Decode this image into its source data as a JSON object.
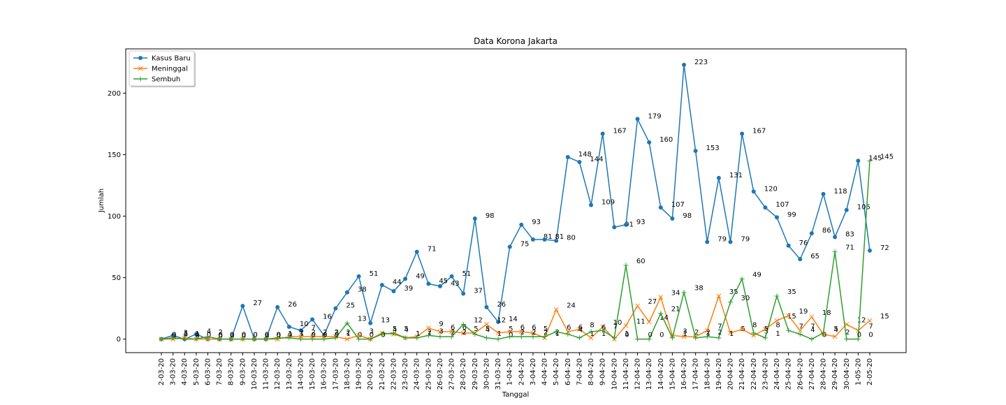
{
  "chart_data": {
    "type": "line",
    "title": "Data Korona Jakarta",
    "xlabel": "Tanggal",
    "ylabel": "Jumlah",
    "ylim": [
      -11,
      236
    ],
    "yticks": [
      0,
      50,
      100,
      150,
      200
    ],
    "grid": false,
    "legend_position": "top-left",
    "categories": [
      "2-03-20",
      "3-03-20",
      "4-03-20",
      "5-03-20",
      "6-03-20",
      "7-03-20",
      "8-03-20",
      "9-03-20",
      "10-03-20",
      "11-03-20",
      "12-03-20",
      "13-03-20",
      "14-03-20",
      "15-03-20",
      "16-03-20",
      "17-03-20",
      "18-03-20",
      "19-03-20",
      "20-03-20",
      "21-03-20",
      "22-03-20",
      "23-03-20",
      "24-03-20",
      "25-03-20",
      "26-03-20",
      "27-03-20",
      "28-03-20",
      "29-03-20",
      "30-03-20",
      "31-03-20",
      "1-04-20",
      "2-04-20",
      "3-04-20",
      "4-04-20",
      "5-04-20",
      "6-04-20",
      "7-04-20",
      "8-04-20",
      "9-04-20",
      "10-04-20",
      "11-04-20",
      "12-04-20",
      "13-04-20",
      "14-04-20",
      "15-04-20",
      "16-04-20",
      "17-04-20",
      "18-04-20",
      "19-04-20",
      "20-04-20",
      "21-04-20",
      "22-04-20",
      "23-04-20",
      "24-04-20",
      "25-04-20",
      "26-04-20",
      "27-04-20",
      "28-04-20",
      "29-04-20",
      "30-04-20",
      "1-05-20",
      "2-05-20"
    ],
    "series": [
      {
        "name": "Kasus Baru",
        "color": "#1f77b4",
        "marker": "circle",
        "values": [
          0,
          3,
          0,
          4,
          0,
          0,
          0,
          27,
          0,
          0,
          26,
          10,
          7,
          16,
          3,
          25,
          38,
          51,
          13,
          44,
          39,
          49,
          71,
          45,
          43,
          51,
          37,
          98,
          26,
          14,
          75,
          93,
          81,
          81,
          80,
          148,
          144,
          109,
          167,
          91,
          93,
          179,
          160,
          107,
          98,
          223,
          153,
          79,
          131,
          79,
          167,
          120,
          107,
          99,
          76,
          65,
          86,
          118,
          83,
          105,
          145,
          72
        ]
      },
      {
        "name": "Meninggal",
        "color": "#ff7f0e",
        "marker": "x",
        "values": [
          0,
          0,
          1,
          0,
          0,
          0,
          0,
          0,
          0,
          0,
          0,
          2,
          2,
          2,
          2,
          2,
          0,
          3,
          0,
          5,
          4,
          1,
          2,
          9,
          6,
          6,
          5,
          5,
          12,
          5,
          6,
          6,
          5,
          1,
          24,
          6,
          8,
          1,
          10,
          0,
          11,
          27,
          14,
          34,
          3,
          2,
          2,
          7,
          35,
          5,
          8,
          3,
          8,
          15,
          19,
          7,
          18,
          4,
          2,
          12,
          7,
          15
        ]
      },
      {
        "name": "Sembuh",
        "color": "#2ca02c",
        "marker": "plus",
        "values": [
          0,
          1,
          0,
          0,
          2,
          0,
          0,
          0,
          0,
          0,
          1,
          1,
          0,
          0,
          0,
          1,
          13,
          0,
          0,
          4,
          5,
          1,
          1,
          3,
          2,
          2,
          12,
          4,
          1,
          0,
          2,
          2,
          2,
          2,
          6,
          4,
          1,
          6,
          7,
          1,
          60,
          0,
          0,
          21,
          1,
          38,
          1,
          2,
          1,
          30,
          49,
          5,
          1,
          35,
          7,
          4,
          0,
          5,
          71,
          0,
          0,
          145
        ]
      }
    ]
  }
}
